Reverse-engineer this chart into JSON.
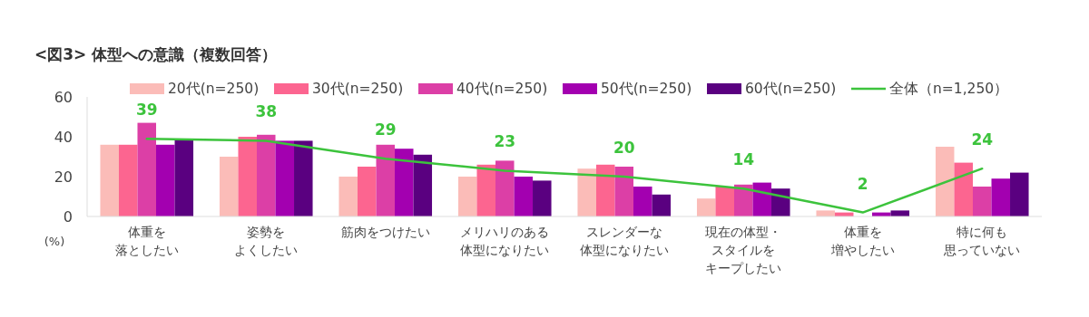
{
  "chart_data": {
    "type": "bar",
    "title": "<図3> 体型への意識（複数回答）",
    "ylabel": "(%)",
    "categories": [
      "体重を落としたい",
      "姿勢をよくしたい",
      "筋肉をつけたい",
      "メリハリのある体型になりたい",
      "スレンダーな体型になりたい",
      "現在の体型・スタイルをキープしたい",
      "体重を増やしたい",
      "特に何も思っていない"
    ],
    "series": [
      {
        "name": "20代(n=250)",
        "color": "#fbbcb8",
        "values": [
          36,
          30,
          20,
          20,
          24,
          9,
          3,
          35
        ]
      },
      {
        "name": "30代(n=250)",
        "color": "#fc6590",
        "values": [
          36,
          40,
          25,
          26,
          26,
          15,
          2,
          27
        ]
      },
      {
        "name": "40代(n=250)",
        "color": "#dc3fa6",
        "values": [
          47,
          41,
          36,
          28,
          25,
          16,
          null,
          15
        ]
      },
      {
        "name": "50代(n=250)",
        "color": "#a300b0",
        "values": [
          36,
          38,
          34,
          20,
          15,
          17,
          2,
          19
        ]
      },
      {
        "name": "60代(n=250)",
        "color": "#5a0080",
        "values": [
          39,
          38,
          31,
          18,
          11,
          14,
          3,
          22
        ]
      },
      {
        "name": "全体（n=1,250）",
        "type": "line",
        "color": "#3cc33c",
        "values": [
          39,
          38,
          29,
          23,
          20,
          14,
          2,
          24
        ],
        "value_labels": [
          "39",
          "38",
          "29",
          "23",
          "20",
          "14",
          "2",
          "24"
        ]
      }
    ],
    "ylim": [
      0,
      60
    ],
    "yticks": [
      0,
      20,
      40,
      60
    ],
    "grid": false,
    "legend": "top",
    "marker": "none",
    "line_style": "solid"
  }
}
